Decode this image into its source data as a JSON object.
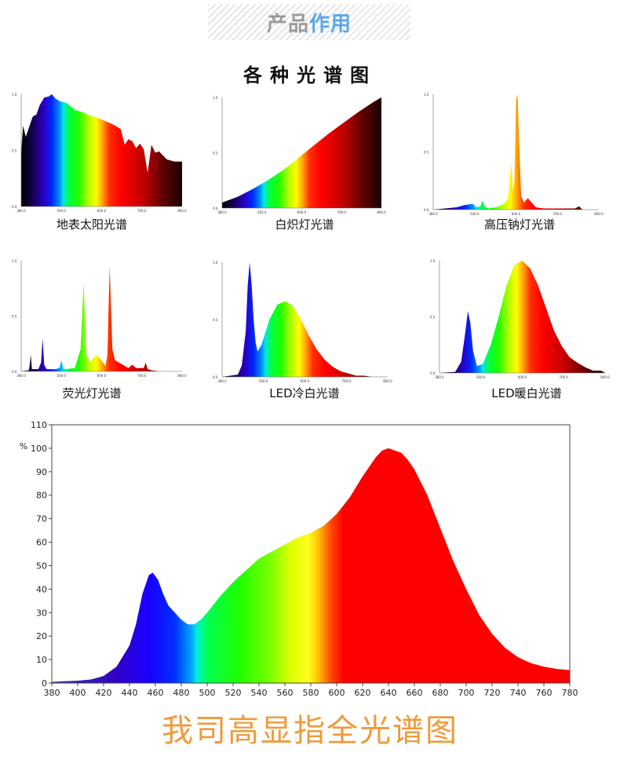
{
  "header": {
    "title_part1": "产品",
    "title_part2": "作用"
  },
  "section_title": "各种光谱图",
  "thumbnails": [
    {
      "label": "地表太阳光谱",
      "y_ticks": [
        "1.0",
        "0.5",
        "0.0"
      ],
      "x_ticks": [
        "380.0",
        "500.0",
        "600.0",
        "700.0",
        "800.0"
      ]
    },
    {
      "label": "白炽灯光谱",
      "y_ticks": [
        "1.0",
        "0.5",
        "0.0"
      ],
      "x_ticks": [
        "380.0",
        "500.0",
        "600.0",
        "700.0",
        "800.0"
      ]
    },
    {
      "label": "高压钠灯光谱",
      "y_ticks": [
        "1.0",
        "0.5",
        "0.0"
      ],
      "x_ticks": [
        "380.0",
        "500.0",
        "600.0",
        "700.0",
        "800.0"
      ]
    },
    {
      "label": "荧光灯光谱",
      "y_ticks": [
        "1.0",
        "0.5",
        "0.0"
      ],
      "x_ticks": [
        "380.0",
        "500.0",
        "600.0",
        "700.0",
        "800.0"
      ]
    },
    {
      "label": "LED冷白光谱",
      "y_ticks": [
        "1.0",
        "0.5",
        "0.0"
      ],
      "x_ticks": [
        "380.0",
        "500.0",
        "600.0",
        "700.0",
        "800.0"
      ]
    },
    {
      "label": "LED暖白光谱",
      "y_ticks": [
        "1.0",
        "0.5",
        "0.0"
      ],
      "x_ticks": [
        "380.0",
        "500.0",
        "600.0",
        "700.0",
        "800.0"
      ]
    }
  ],
  "chart_data": [
    {
      "type": "area",
      "title": "地表太阳光谱",
      "x_range": [
        380,
        800
      ],
      "ylim": [
        0,
        1
      ],
      "x": [
        380,
        385,
        392,
        398,
        410,
        420,
        428,
        440,
        452,
        460,
        470,
        480,
        500,
        520,
        540,
        560,
        580,
        600,
        620,
        640,
        650,
        660,
        670,
        680,
        690,
        700,
        710,
        720,
        730,
        740,
        760,
        780,
        800
      ],
      "values": [
        0.48,
        0.72,
        0.62,
        0.68,
        0.8,
        0.82,
        0.9,
        0.97,
        0.98,
        1.0,
        0.96,
        0.94,
        0.92,
        0.86,
        0.84,
        0.81,
        0.79,
        0.76,
        0.73,
        0.69,
        0.55,
        0.6,
        0.58,
        0.52,
        0.56,
        0.51,
        0.3,
        0.55,
        0.48,
        0.49,
        0.42,
        0.4,
        0.4
      ]
    },
    {
      "type": "area",
      "title": "白炽灯光谱",
      "x_range": [
        380,
        800
      ],
      "ylim": [
        0,
        1
      ],
      "x": [
        380,
        420,
        460,
        500,
        540,
        580,
        620,
        660,
        700,
        740,
        780,
        800
      ],
      "values": [
        0.05,
        0.1,
        0.17,
        0.25,
        0.34,
        0.45,
        0.56,
        0.67,
        0.77,
        0.87,
        0.96,
        1.0
      ]
    },
    {
      "type": "area",
      "title": "高压钠灯光谱",
      "x_range": [
        380,
        800
      ],
      "ylim": [
        0,
        1
      ],
      "x": [
        380,
        440,
        460,
        480,
        490,
        500,
        505,
        510,
        520,
        540,
        560,
        570,
        578,
        582,
        586,
        590,
        594,
        598,
        603,
        610,
        620,
        640,
        660,
        700,
        740,
        750,
        755,
        760,
        800
      ],
      "values": [
        0,
        0.02,
        0.04,
        0.05,
        0.02,
        0.03,
        0.08,
        0.03,
        0.01,
        0.02,
        0.05,
        0.1,
        0.4,
        0.15,
        0.25,
        0.95,
        1.0,
        0.55,
        0.12,
        0.06,
        0.1,
        0.02,
        0.01,
        0.01,
        0.01,
        0.03,
        0.01,
        0,
        0
      ]
    },
    {
      "type": "area",
      "title": "荧光灯光谱",
      "x_range": [
        380,
        800
      ],
      "ylim": [
        0,
        1
      ],
      "x": [
        380,
        400,
        402,
        405,
        408,
        425,
        432,
        436,
        440,
        446,
        470,
        480,
        485,
        490,
        495,
        520,
        535,
        543,
        550,
        560,
        575,
        585,
        600,
        605,
        611,
        618,
        625,
        650,
        660,
        670,
        680,
        700,
        705,
        710,
        720,
        740,
        800
      ],
      "values": [
        0,
        0.01,
        0.05,
        0.15,
        0.02,
        0.02,
        0.08,
        0.3,
        0.06,
        0.02,
        0.02,
        0.03,
        0.1,
        0.03,
        0.02,
        0.03,
        0.2,
        0.8,
        0.15,
        0.08,
        0.15,
        0.12,
        0.05,
        0.15,
        0.95,
        0.2,
        0.1,
        0.05,
        0.03,
        0.06,
        0.03,
        0.03,
        0.08,
        0.02,
        0.01,
        0,
        0
      ]
    },
    {
      "type": "area",
      "title": "LED冷白光谱",
      "x_range": [
        380,
        800
      ],
      "ylim": [
        0,
        1
      ],
      "x": [
        380,
        420,
        430,
        440,
        445,
        450,
        455,
        460,
        465,
        470,
        480,
        500,
        520,
        540,
        560,
        580,
        600,
        620,
        640,
        660,
        680,
        700,
        720,
        740,
        760,
        800
      ],
      "values": [
        0,
        0.02,
        0.1,
        0.4,
        0.8,
        1.0,
        0.8,
        0.5,
        0.3,
        0.22,
        0.28,
        0.5,
        0.63,
        0.66,
        0.62,
        0.5,
        0.36,
        0.24,
        0.15,
        0.09,
        0.05,
        0.03,
        0.01,
        0.01,
        0,
        0
      ]
    },
    {
      "type": "area",
      "title": "LED暖白光谱",
      "x_range": [
        380,
        800
      ],
      "ylim": [
        0,
        1
      ],
      "x": [
        380,
        420,
        435,
        445,
        452,
        458,
        465,
        475,
        490,
        510,
        530,
        550,
        570,
        590,
        610,
        630,
        650,
        670,
        690,
        710,
        730,
        750,
        770,
        790,
        800
      ],
      "values": [
        0,
        0.01,
        0.1,
        0.35,
        0.55,
        0.45,
        0.2,
        0.06,
        0.08,
        0.25,
        0.5,
        0.78,
        0.96,
        1.0,
        0.93,
        0.78,
        0.58,
        0.38,
        0.24,
        0.14,
        0.09,
        0.05,
        0.02,
        0.02,
        0
      ]
    },
    {
      "type": "area",
      "title": "我司高显指全光谱图",
      "xlabel": "",
      "ylabel": "%",
      "xlim": [
        380,
        780
      ],
      "ylim": [
        0,
        110
      ],
      "xticks": [
        380,
        400,
        420,
        440,
        460,
        480,
        500,
        520,
        540,
        560,
        580,
        600,
        620,
        640,
        660,
        680,
        700,
        720,
        740,
        760,
        780
      ],
      "yticks": [
        0,
        10,
        20,
        30,
        40,
        50,
        60,
        70,
        80,
        90,
        100,
        110
      ],
      "x": [
        380,
        390,
        400,
        410,
        420,
        430,
        440,
        445,
        450,
        455,
        458,
        462,
        466,
        470,
        475,
        480,
        485,
        490,
        495,
        500,
        510,
        520,
        530,
        540,
        550,
        560,
        570,
        580,
        590,
        600,
        610,
        620,
        630,
        635,
        640,
        645,
        650,
        655,
        660,
        670,
        680,
        690,
        700,
        710,
        720,
        730,
        740,
        750,
        760,
        770,
        780
      ],
      "values": [
        0.5,
        0.8,
        1,
        1.5,
        3,
        7,
        16,
        25,
        38,
        46,
        47,
        44,
        38,
        33,
        30,
        27,
        25,
        25,
        27,
        30,
        37,
        43,
        48,
        53,
        56,
        59,
        62,
        64,
        67,
        72,
        79,
        88,
        96,
        99,
        100,
        99,
        98,
        95,
        91,
        80,
        66,
        52,
        40,
        29,
        21,
        15,
        11,
        8.5,
        7,
        6,
        5.5
      ]
    }
  ],
  "footer": {
    "text": "我司高显指全光谱图"
  }
}
